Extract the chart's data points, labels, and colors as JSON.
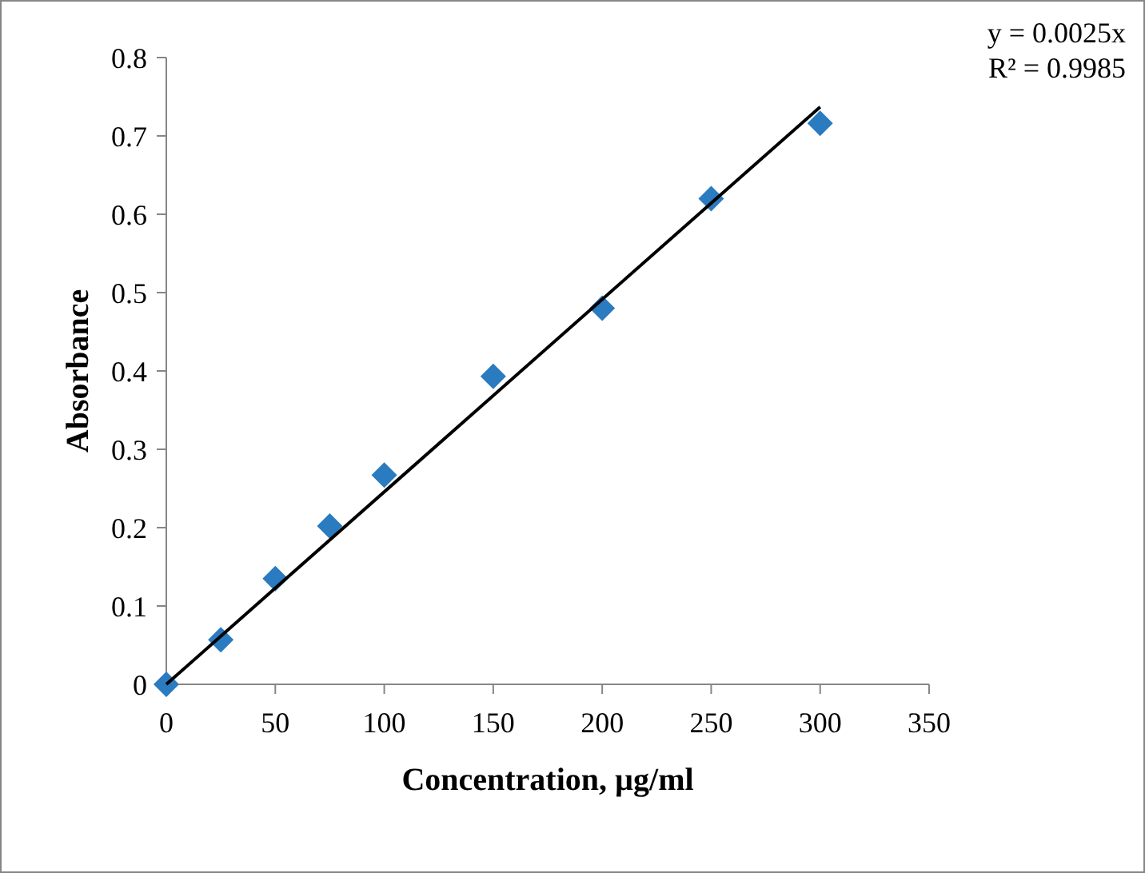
{
  "chart_data": {
    "type": "scatter",
    "xlabel": "Concentration, µg/ml",
    "ylabel": "Absorbance",
    "x": [
      0,
      25,
      50,
      75,
      100,
      150,
      200,
      250,
      300
    ],
    "series": [
      {
        "color": "#2a7bc0",
        "marker": "diamond",
        "values": [
          0,
          0.057,
          0.135,
          0.202,
          0.267,
          0.393,
          0.48,
          0.62,
          0.716
        ]
      },
      {
        "type": "line",
        "color": "#000000",
        "x": [
          0,
          300
        ],
        "values": [
          0,
          0.737
        ],
        "line_style": "solid"
      }
    ],
    "xlim": [
      0,
      350
    ],
    "xticks": [
      0,
      50,
      100,
      150,
      200,
      250,
      300,
      350
    ],
    "ylim": [
      0,
      0.8
    ],
    "yticks": [
      0,
      0.1,
      0.2,
      0.3,
      0.4,
      0.5,
      0.6,
      0.7,
      0.8
    ],
    "annotations": [
      "y = 0.0025x",
      "R² = 0.9985"
    ]
  }
}
